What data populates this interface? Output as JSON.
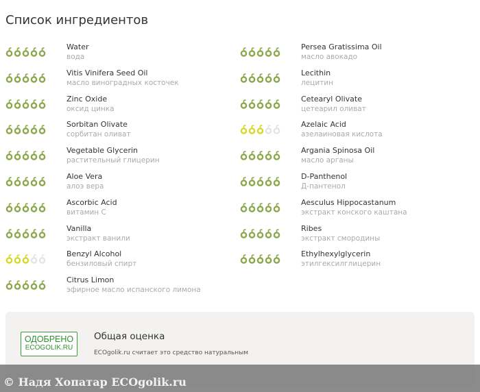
{
  "title": "Список ингредиентов",
  "colors": {
    "good": "#8ca64a",
    "medium": "#d8d82a",
    "empty": "#e4e4e4"
  },
  "rating_icon": "olive-icon",
  "left": [
    {
      "name": "Water",
      "ru": "вода",
      "rating": 5,
      "level": "good"
    },
    {
      "name": "Vitis Vinifera Seed Oil",
      "ru": "масло виноградных косточек",
      "rating": 5,
      "level": "good"
    },
    {
      "name": "Zinc Oxide",
      "ru": "оксид цинка",
      "rating": 5,
      "level": "good"
    },
    {
      "name": "Sorbitan Olivate",
      "ru": "сорбитан оливат",
      "rating": 5,
      "level": "good"
    },
    {
      "name": "Vegetable Glycerin",
      "ru": "растительный глицерин",
      "rating": 5,
      "level": "good"
    },
    {
      "name": "Aloe Vera",
      "ru": "алоэ вера",
      "rating": 5,
      "level": "good"
    },
    {
      "name": "Ascorbic Acid",
      "ru": "витамин С",
      "rating": 5,
      "level": "good"
    },
    {
      "name": "Vanilla",
      "ru": "экстракт ванили",
      "rating": 5,
      "level": "good"
    },
    {
      "name": "Benzyl Alcohol",
      "ru": "бензиловый спирт",
      "rating": 3,
      "level": "medium"
    },
    {
      "name": "Citrus Limon",
      "ru": "эфирное масло испанского лимона",
      "rating": 5,
      "level": "good"
    }
  ],
  "right": [
    {
      "name": "Persea Gratissima Oil",
      "ru": "масло авокадо",
      "rating": 5,
      "level": "good"
    },
    {
      "name": "Lecithin",
      "ru": "лецитин",
      "rating": 5,
      "level": "good"
    },
    {
      "name": "Cetearyl Olivate",
      "ru": "цетеарил оливат",
      "rating": 5,
      "level": "good"
    },
    {
      "name": "Azelaic Acid",
      "ru": "азелаиновая кислота",
      "rating": 3,
      "level": "medium"
    },
    {
      "name": "Argania Spinosa Oil",
      "ru": "масло арганы",
      "rating": 5,
      "level": "good"
    },
    {
      "name": "D-Panthenol",
      "ru": "Д-пантенол",
      "rating": 5,
      "level": "good"
    },
    {
      "name": "Aesculus Hippocastanum",
      "ru": "экстракт конского каштана",
      "rating": 5,
      "level": "good"
    },
    {
      "name": "Ribes",
      "ru": "экстракт смородины",
      "rating": 5,
      "level": "good"
    },
    {
      "name": "Ethylhexylglycerin",
      "ru": "этилгексилглицерин",
      "rating": 5,
      "level": "good"
    }
  ],
  "overall": {
    "badge_line1": "ОДОБРЕНО",
    "badge_line2": "ECOGOLIK.RU",
    "title": "Общая оценка",
    "description": "ECOgolik.ru считает это средство натуральным"
  },
  "watermark": "© Надя Хопатар ECOgolik.ru"
}
